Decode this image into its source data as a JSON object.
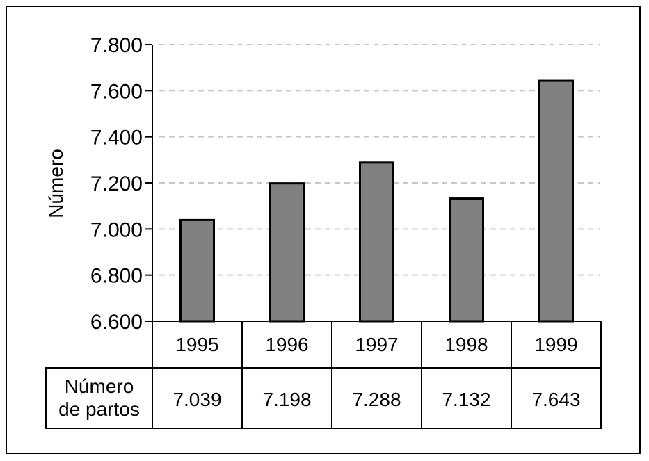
{
  "chart_data": {
    "type": "bar",
    "title": "",
    "xlabel": "",
    "ylabel": "Número",
    "categories": [
      "1995",
      "1996",
      "1997",
      "1998",
      "1999"
    ],
    "values": [
      7039,
      7198,
      7288,
      7132,
      7643
    ],
    "ylim": [
      6600,
      7800
    ],
    "y_ticks": [
      "6.600",
      "6.800",
      "7.000",
      "7.200",
      "7.400",
      "7.600",
      "7.800"
    ],
    "grid": true,
    "bar_color": "#808080",
    "table": {
      "row_label_line1": "Número",
      "row_label_line2": "de partos",
      "values": [
        "7.039",
        "7.198",
        "7.288",
        "7.132",
        "7.643"
      ]
    }
  }
}
